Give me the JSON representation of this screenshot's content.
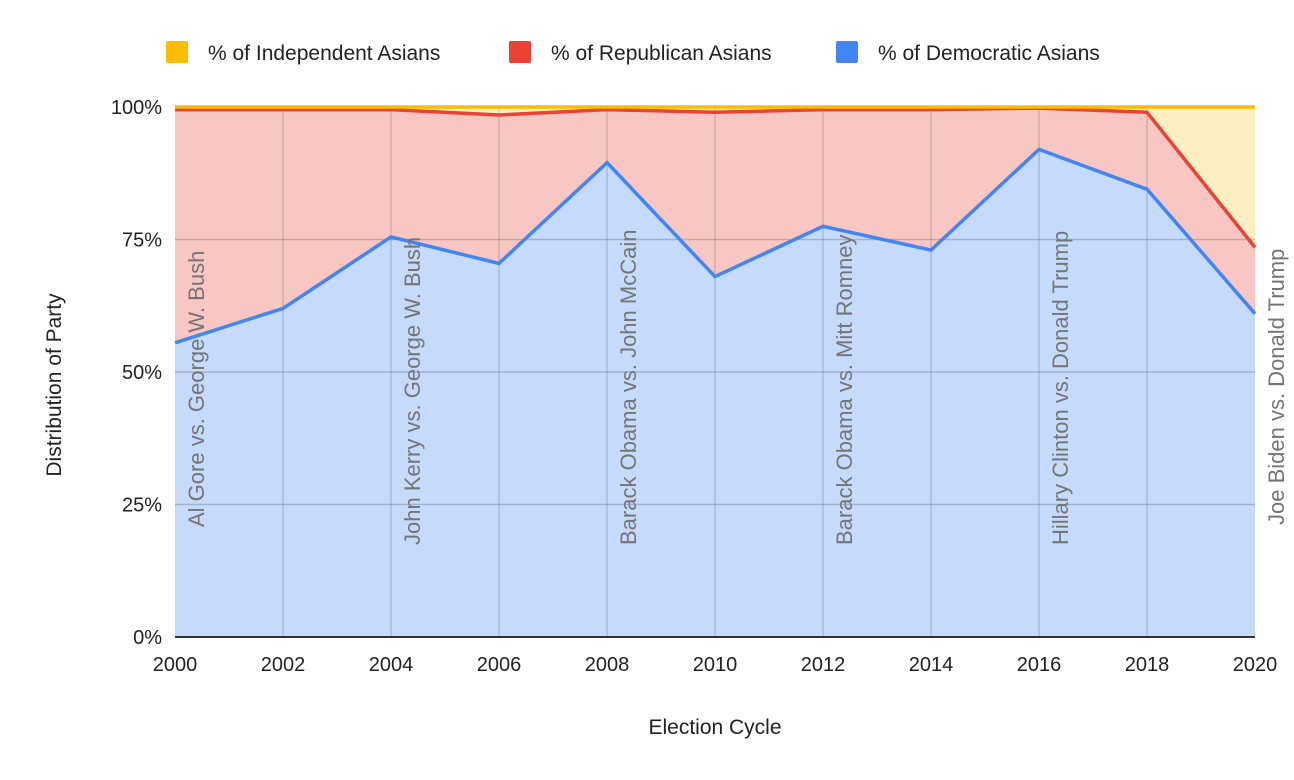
{
  "chart_data": {
    "type": "area",
    "stacked": true,
    "title": "",
    "xlabel": "Election Cycle",
    "ylabel": "Distribution of Party",
    "x": [
      2000,
      2002,
      2004,
      2006,
      2008,
      2010,
      2012,
      2014,
      2016,
      2018,
      2020
    ],
    "x_tick_labels": [
      "2000",
      "2002",
      "2004",
      "2006",
      "2008",
      "2010",
      "2012",
      "2014",
      "2016",
      "2018",
      "2020"
    ],
    "ylim": [
      0,
      100
    ],
    "y_ticks": [
      0,
      25,
      50,
      75,
      100
    ],
    "y_tick_labels": [
      "0%",
      "25%",
      "50%",
      "75%",
      "100%"
    ],
    "series": [
      {
        "name": "% of Democratic Asians",
        "color": "#4285f4",
        "fill": "#c6dafc",
        "values": [
          55.5,
          62,
          75.5,
          70.5,
          89.5,
          68,
          77.5,
          73,
          92,
          84.5,
          61
        ]
      },
      {
        "name": "% of Republican Asians",
        "color": "#ea4335",
        "fill": "#f8c7c3",
        "values": [
          44,
          37.5,
          24,
          28,
          10,
          31,
          22,
          26.5,
          7.8,
          14.5,
          12.5
        ]
      },
      {
        "name": "% of Independent Asians",
        "color": "#fbbc04",
        "fill": "#feefc3",
        "values": [
          0.5,
          0.5,
          0.5,
          1.5,
          0.5,
          1,
          0.5,
          0.5,
          0.2,
          1,
          26.5
        ]
      }
    ],
    "legend": {
      "position": "top",
      "order": [
        "% of Independent Asians",
        "% of Republican Asians",
        "% of Democratic Asians"
      ]
    },
    "annotations": [
      {
        "x": 2000,
        "text": "Al Gore vs. George W. Bush"
      },
      {
        "x": 2004,
        "text": "John Kerry vs. George W. Bush"
      },
      {
        "x": 2008,
        "text": "Barack Obama vs. John McCain"
      },
      {
        "x": 2012,
        "text": "Barack Obama vs. Mitt Romney"
      },
      {
        "x": 2016,
        "text": "Hillary Clinton vs. Donald Trump"
      },
      {
        "x": 2020,
        "text": "Joe Biden vs. Donald Trump"
      }
    ],
    "grid": true
  }
}
